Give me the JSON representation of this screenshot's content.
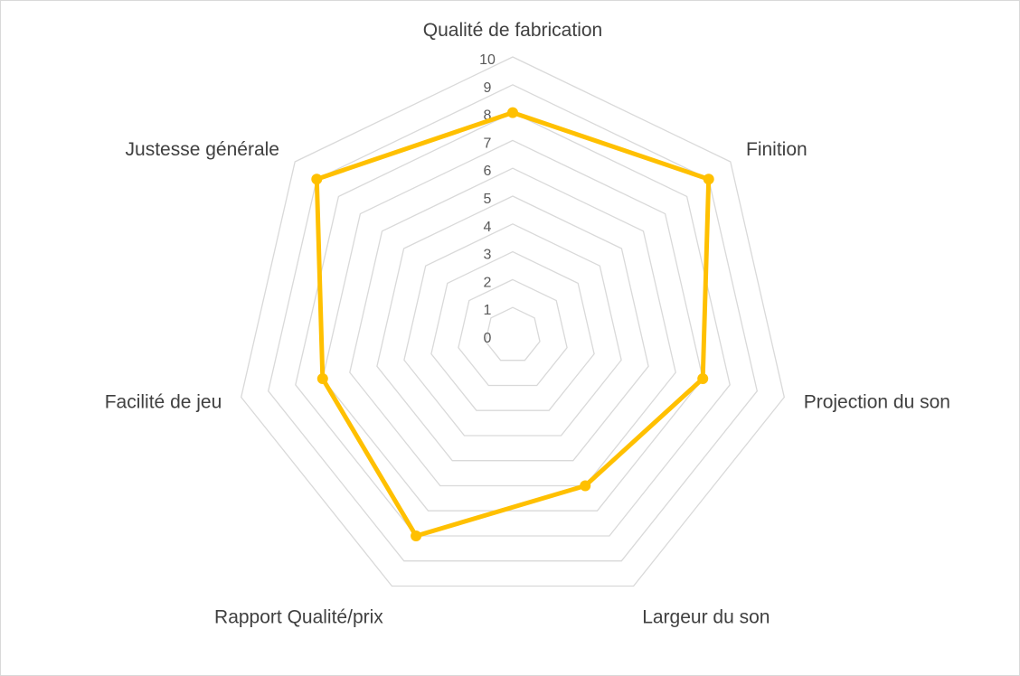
{
  "chart_data": {
    "type": "radar",
    "title": "",
    "categories": [
      "Qualité de fabrication",
      "Finition",
      "Projection du son",
      "Largeur du son",
      "Rapport Qualité/prix",
      "Facilité de jeu",
      "Justesse générale"
    ],
    "series": [
      {
        "values": [
          8,
          9,
          7,
          6,
          8,
          7,
          9
        ],
        "color": "#FFC000"
      }
    ],
    "rlim": [
      0,
      10
    ],
    "ticks": [
      "0",
      "1",
      "2",
      "3",
      "4",
      "5",
      "6",
      "7",
      "8",
      "9",
      "10"
    ],
    "grid": true,
    "legend": "none",
    "colors": {
      "grid": "#D9D9D9",
      "tick_text": "#595959",
      "label_text": "#404040"
    }
  }
}
